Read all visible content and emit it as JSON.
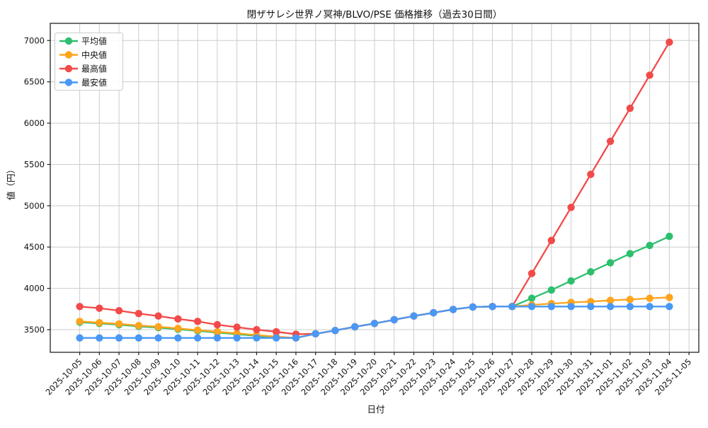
{
  "figure": {
    "title": "閉ザサレシ世界ノ冥神/BLVO/PSE 価格推移（過去30日間）"
  },
  "chart_data": {
    "type": "line",
    "title": "閉ザサレシ世界ノ冥神/BLVO/PSE 価格推移（過去30日間）",
    "xlabel": "日付",
    "ylabel": "値（円）",
    "grid": true,
    "grid_color": "#cccccc",
    "background": "#ffffff",
    "legend_position": "upper-left",
    "ylim": [
      3226,
      7208
    ],
    "yticks": [
      3500,
      4000,
      4500,
      5000,
      5500,
      6000,
      6500,
      7000
    ],
    "x_tick_labels": [
      "2025-10-05",
      "2025-10-06",
      "2025-10-07",
      "2025-10-08",
      "2025-10-09",
      "2025-10-10",
      "2025-10-11",
      "2025-10-12",
      "2025-10-13",
      "2025-10-14",
      "2025-10-15",
      "2025-10-16",
      "2025-10-17",
      "2025-10-18",
      "2025-10-19",
      "2025-10-20",
      "2025-10-21",
      "2025-10-22",
      "2025-10-23",
      "2025-10-24",
      "2025-10-25",
      "2025-10-26",
      "2025-10-27",
      "2025-10-28",
      "2025-10-29",
      "2025-10-30",
      "2025-10-31",
      "2025-11-01",
      "2025-11-02",
      "2025-11-03",
      "2025-11-04",
      "2025-11-05"
    ],
    "categories": [
      "2025-10-05",
      "2025-10-06",
      "2025-10-07",
      "2025-10-08",
      "2025-10-09",
      "2025-10-10",
      "2025-10-11",
      "2025-10-12",
      "2025-10-13",
      "2025-10-14",
      "2025-10-15",
      "2025-10-16",
      "2025-10-17",
      "2025-10-18",
      "2025-10-19",
      "2025-10-20",
      "2025-10-21",
      "2025-10-22",
      "2025-10-23",
      "2025-10-24",
      "2025-10-25",
      "2025-10-26",
      "2025-10-27",
      "2025-10-28",
      "2025-10-29",
      "2025-10-30",
      "2025-10-31",
      "2025-11-01",
      "2025-11-02",
      "2025-11-03",
      "2025-11-04"
    ],
    "series": [
      {
        "key": "mean",
        "name": "平均値",
        "color": "#2dbf6e",
        "values": [
          3590,
          3575,
          3560,
          3540,
          3525,
          3505,
          3485,
          3465,
          3445,
          3425,
          3405,
          3400,
          3450,
          3490,
          3535,
          3575,
          3620,
          3665,
          3705,
          3745,
          3775,
          3780,
          3780,
          3880,
          3980,
          4090,
          4200,
          4310,
          4420,
          4520,
          4630
        ]
      },
      {
        "key": "median",
        "name": "中央値",
        "color": "#ffa41c",
        "values": [
          3600,
          3585,
          3570,
          3550,
          3535,
          3515,
          3495,
          3475,
          3455,
          3435,
          3415,
          3400,
          3450,
          3490,
          3535,
          3575,
          3620,
          3665,
          3705,
          3745,
          3775,
          3780,
          3780,
          3800,
          3815,
          3830,
          3840,
          3855,
          3865,
          3880,
          3890
        ]
      },
      {
        "key": "max",
        "name": "最高値",
        "color": "#f24a4a",
        "values": [
          3780,
          3760,
          3730,
          3695,
          3665,
          3630,
          3600,
          3560,
          3530,
          3500,
          3475,
          3445,
          3450,
          3490,
          3535,
          3575,
          3620,
          3665,
          3705,
          3745,
          3775,
          3780,
          3780,
          4180,
          4580,
          4980,
          5380,
          5780,
          6180,
          6580,
          6980
        ]
      },
      {
        "key": "min",
        "name": "最安値",
        "color": "#4a98f5",
        "values": [
          3400,
          3400,
          3400,
          3400,
          3400,
          3400,
          3400,
          3400,
          3400,
          3400,
          3400,
          3400,
          3450,
          3490,
          3535,
          3575,
          3620,
          3665,
          3705,
          3745,
          3775,
          3780,
          3780,
          3780,
          3780,
          3780,
          3780,
          3780,
          3780,
          3780,
          3780
        ]
      }
    ]
  }
}
